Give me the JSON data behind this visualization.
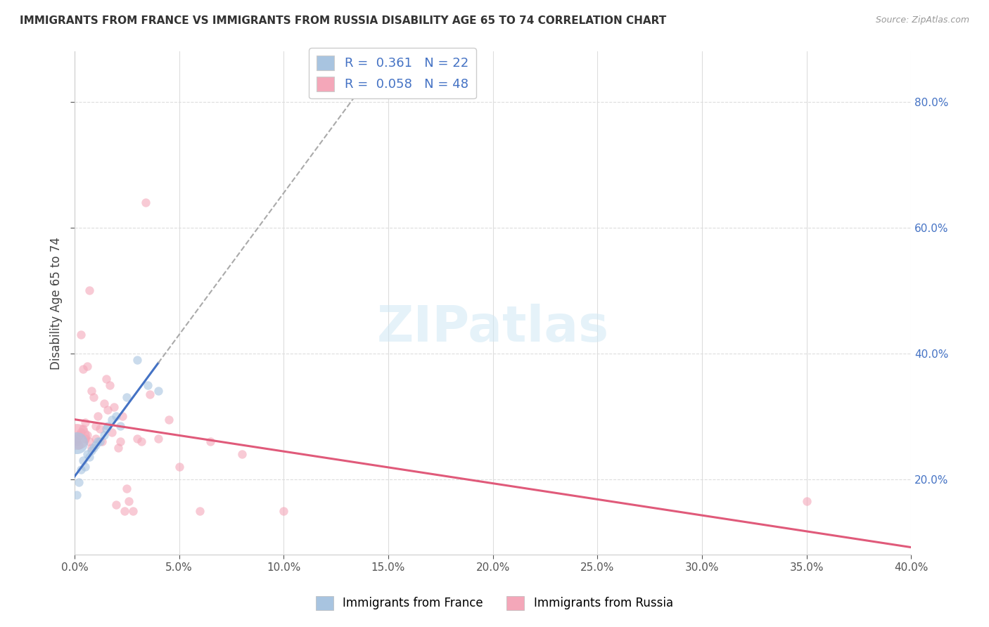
{
  "title": "IMMIGRANTS FROM FRANCE VS IMMIGRANTS FROM RUSSIA DISABILITY AGE 65 TO 74 CORRELATION CHART",
  "source": "Source: ZipAtlas.com",
  "ylabel": "Disability Age 65 to 74",
  "legend_label_france": "Immigrants from France",
  "legend_label_russia": "Immigrants from Russia",
  "france_R": "0.361",
  "france_N": "22",
  "russia_R": "0.058",
  "russia_N": "48",
  "xlim": [
    0.0,
    0.4
  ],
  "ylim": [
    0.08,
    0.88
  ],
  "xticks": [
    0.0,
    0.05,
    0.1,
    0.15,
    0.2,
    0.25,
    0.3,
    0.35,
    0.4
  ],
  "yticks": [
    0.2,
    0.4,
    0.6,
    0.8
  ],
  "france_color": "#a8c4e0",
  "france_line_color": "#4472c4",
  "russia_color": "#f4a7b9",
  "russia_line_color": "#e05a7a",
  "france_x": [
    0.001,
    0.002,
    0.003,
    0.004,
    0.005,
    0.006,
    0.007,
    0.008,
    0.009,
    0.01,
    0.011,
    0.012,
    0.014,
    0.015,
    0.016,
    0.018,
    0.02,
    0.022,
    0.025,
    0.03,
    0.035,
    0.04
  ],
  "france_y": [
    0.175,
    0.195,
    0.215,
    0.23,
    0.22,
    0.24,
    0.235,
    0.245,
    0.25,
    0.255,
    0.26,
    0.26,
    0.27,
    0.28,
    0.285,
    0.295,
    0.3,
    0.285,
    0.33,
    0.39,
    0.35,
    0.34
  ],
  "russia_x": [
    0.001,
    0.001,
    0.002,
    0.002,
    0.003,
    0.003,
    0.004,
    0.004,
    0.005,
    0.005,
    0.006,
    0.006,
    0.007,
    0.007,
    0.008,
    0.008,
    0.009,
    0.01,
    0.01,
    0.011,
    0.012,
    0.013,
    0.014,
    0.015,
    0.016,
    0.017,
    0.018,
    0.019,
    0.02,
    0.021,
    0.022,
    0.023,
    0.024,
    0.025,
    0.026,
    0.028,
    0.03,
    0.032,
    0.034,
    0.036,
    0.04,
    0.045,
    0.05,
    0.06,
    0.065,
    0.08,
    0.1,
    0.35
  ],
  "russia_y": [
    0.265,
    0.26,
    0.27,
    0.255,
    0.275,
    0.43,
    0.28,
    0.375,
    0.265,
    0.29,
    0.27,
    0.38,
    0.5,
    0.26,
    0.25,
    0.34,
    0.33,
    0.285,
    0.265,
    0.3,
    0.28,
    0.26,
    0.32,
    0.36,
    0.31,
    0.35,
    0.275,
    0.315,
    0.16,
    0.25,
    0.26,
    0.3,
    0.15,
    0.185,
    0.165,
    0.15,
    0.265,
    0.26,
    0.64,
    0.335,
    0.265,
    0.295,
    0.22,
    0.15,
    0.26,
    0.24,
    0.15,
    0.165
  ],
  "background_color": "#ffffff",
  "grid_color": "#dddddd",
  "dot_size": 80,
  "dot_alpha": 0.6,
  "russia_large_size": 700,
  "france_large_size": 500
}
